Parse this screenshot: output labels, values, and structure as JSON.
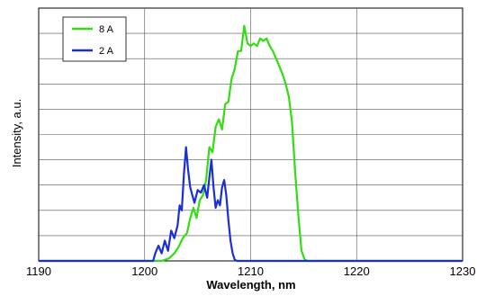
{
  "chart_data": {
    "type": "line",
    "xlabel": "Wavelength, nm",
    "ylabel": "Intensity, a.u.",
    "xlim": [
      1190,
      1230
    ],
    "ylim": [
      0,
      10
    ],
    "x_ticks": [
      "1190",
      "1200",
      "1210",
      "1220",
      "1230"
    ],
    "y_gridlines": 10,
    "grid": true,
    "legend_position": "top-left",
    "series": [
      {
        "name": "8 A",
        "color": "#33dd11",
        "points": [
          [
            1190,
            0
          ],
          [
            1201.6,
            0
          ],
          [
            1202.3,
            0.1
          ],
          [
            1202.8,
            0.3
          ],
          [
            1203.2,
            0.55
          ],
          [
            1203.6,
            0.9
          ],
          [
            1204.0,
            1.1
          ],
          [
            1204.3,
            1.7
          ],
          [
            1204.6,
            2.1
          ],
          [
            1204.9,
            1.7
          ],
          [
            1205.2,
            2.4
          ],
          [
            1205.5,
            2.6
          ],
          [
            1205.8,
            3.2
          ],
          [
            1206.1,
            4.5
          ],
          [
            1206.4,
            4.3
          ],
          [
            1206.7,
            5.3
          ],
          [
            1207.0,
            5.6
          ],
          [
            1207.3,
            5.2
          ],
          [
            1207.6,
            6.2
          ],
          [
            1207.9,
            6.3
          ],
          [
            1208.2,
            7.2
          ],
          [
            1208.5,
            7.6
          ],
          [
            1208.8,
            8.3
          ],
          [
            1209.1,
            8.3
          ],
          [
            1209.4,
            9.3
          ],
          [
            1209.7,
            8.6
          ],
          [
            1210.0,
            8.5
          ],
          [
            1210.3,
            8.6
          ],
          [
            1210.6,
            8.5
          ],
          [
            1210.9,
            8.8
          ],
          [
            1211.2,
            8.7
          ],
          [
            1211.5,
            8.8
          ],
          [
            1211.8,
            8.5
          ],
          [
            1212.1,
            8.3
          ],
          [
            1212.4,
            8.0
          ],
          [
            1212.7,
            7.7
          ],
          [
            1213.0,
            7.4
          ],
          [
            1213.3,
            7.0
          ],
          [
            1213.6,
            6.5
          ],
          [
            1213.9,
            5.5
          ],
          [
            1214.2,
            3.5
          ],
          [
            1214.5,
            1.8
          ],
          [
            1214.8,
            0.4
          ],
          [
            1215.1,
            0.05
          ],
          [
            1215.4,
            0
          ],
          [
            1230,
            0
          ]
        ]
      },
      {
        "name": "2 A",
        "color": "#1a2fd8",
        "points": [
          [
            1190,
            0
          ],
          [
            1200.8,
            0
          ],
          [
            1201.0,
            0.3
          ],
          [
            1201.3,
            0.6
          ],
          [
            1201.6,
            0.3
          ],
          [
            1201.9,
            0.8
          ],
          [
            1202.2,
            0.4
          ],
          [
            1202.5,
            1.2
          ],
          [
            1202.8,
            0.9
          ],
          [
            1203.1,
            1.4
          ],
          [
            1203.3,
            2.2
          ],
          [
            1203.5,
            2.0
          ],
          [
            1203.7,
            3.4
          ],
          [
            1203.9,
            4.5
          ],
          [
            1204.1,
            3.6
          ],
          [
            1204.3,
            2.9
          ],
          [
            1204.5,
            2.6
          ],
          [
            1204.7,
            2.3
          ],
          [
            1205.0,
            2.8
          ],
          [
            1205.3,
            2.7
          ],
          [
            1205.6,
            3.0
          ],
          [
            1205.9,
            2.5
          ],
          [
            1206.1,
            3.3
          ],
          [
            1206.3,
            4.0
          ],
          [
            1206.5,
            2.9
          ],
          [
            1206.7,
            2.1
          ],
          [
            1206.9,
            2.4
          ],
          [
            1207.1,
            2.2
          ],
          [
            1207.3,
            2.9
          ],
          [
            1207.5,
            3.2
          ],
          [
            1207.7,
            2.6
          ],
          [
            1207.9,
            1.6
          ],
          [
            1208.1,
            0.8
          ],
          [
            1208.3,
            0.3
          ],
          [
            1208.5,
            0.05
          ],
          [
            1208.7,
            0
          ],
          [
            1230,
            0
          ]
        ]
      }
    ]
  }
}
